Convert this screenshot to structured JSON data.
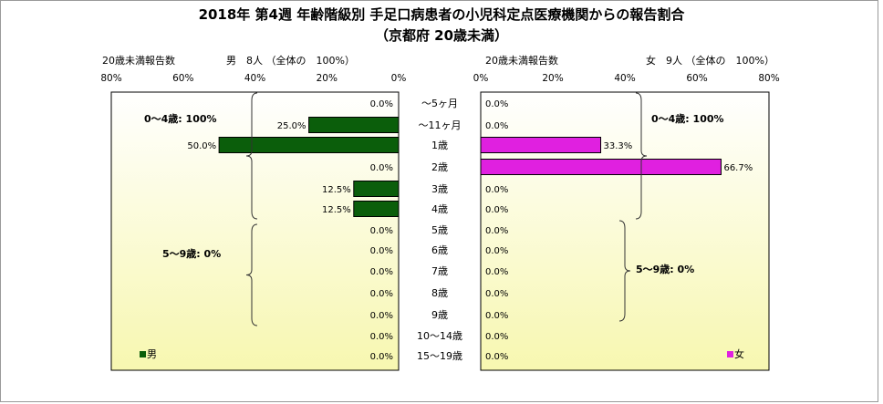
{
  "title": "2018年 第4週 年齢階級別 手足口病患者の小児科定点医療機関からの報告割合",
  "subtitle": "（京都府 20歳未満）",
  "chart_data": [
    {
      "type": "bar",
      "orientation": "horizontal",
      "direction": "reversed",
      "header_left": "20歳未満報告数",
      "header_right": "男　8人 （全体の　100%）",
      "categories": [
        "〜5ヶ月",
        "〜11ヶ月",
        "1歳",
        "2歳",
        "3歳",
        "4歳",
        "5歳",
        "6歳",
        "7歳",
        "8歳",
        "9歳",
        "10〜14歳",
        "15〜19歳"
      ],
      "series": [
        {
          "name": "男",
          "color": "#0b5e0b",
          "values": [
            0.0,
            25.0,
            50.0,
            0.0,
            12.5,
            12.5,
            0.0,
            0.0,
            0.0,
            0.0,
            0.0,
            0.0,
            0.0
          ],
          "labels": [
            "0.0%",
            "25.0%",
            "50.0%",
            "0.0%",
            "12.5%",
            "12.5%",
            "0.0%",
            "0.0%",
            "0.0%",
            "0.0%",
            "0.0%",
            "0.0%",
            "0.0%"
          ]
        }
      ],
      "xlim": [
        0,
        80
      ],
      "ticks": [
        "80%",
        "60%",
        "40%",
        "20%",
        "0%"
      ],
      "group_labels": [
        "0〜4歳: 100%",
        "5〜9歳: 0%"
      ],
      "legend": "男",
      "legend_position": "bottom-left",
      "grid": false
    },
    {
      "type": "bar",
      "orientation": "horizontal",
      "header_left": "20歳未満報告数",
      "header_right": "女　9人 （全体の　100%）",
      "categories": [
        "〜5ヶ月",
        "〜11ヶ月",
        "1歳",
        "2歳",
        "3歳",
        "4歳",
        "5歳",
        "6歳",
        "7歳",
        "8歳",
        "9歳",
        "10〜14歳",
        "15〜19歳"
      ],
      "series": [
        {
          "name": "女",
          "color": "#e020e0",
          "values": [
            0.0,
            0.0,
            33.3,
            66.7,
            0.0,
            0.0,
            0.0,
            0.0,
            0.0,
            0.0,
            0.0,
            0.0,
            0.0
          ],
          "labels": [
            "0.0%",
            "0.0%",
            "33.3%",
            "66.7%",
            "0.0%",
            "0.0%",
            "0.0%",
            "0.0%",
            "0.0%",
            "0.0%",
            "0.0%",
            "0.0%",
            "0.0%"
          ]
        }
      ],
      "xlim": [
        0,
        80
      ],
      "ticks": [
        "0%",
        "20%",
        "40%",
        "60%",
        "80%"
      ],
      "group_labels": [
        "0〜4歳: 100%",
        "5〜9歳: 0%"
      ],
      "legend": "女",
      "legend_position": "bottom-right",
      "grid": false
    }
  ]
}
